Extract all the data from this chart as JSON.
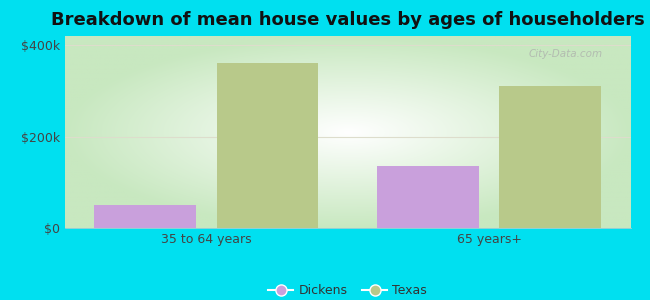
{
  "title": "Breakdown of mean house values by ages of householders",
  "categories": [
    "35 to 64 years",
    "65 years+"
  ],
  "dickens_values": [
    50000,
    135000
  ],
  "texas_values": [
    360000,
    310000
  ],
  "dickens_color": "#c9a0dc",
  "texas_color": "#b8c98a",
  "background_color": "#00e0f0",
  "plot_bg_gradient_center": "#ffffff",
  "plot_bg_gradient_edge": "#c8e8c0",
  "ylim": [
    0,
    420000
  ],
  "yticks": [
    0,
    200000,
    400000
  ],
  "ytick_labels": [
    "$0",
    "$200k",
    "$400k"
  ],
  "legend_labels": [
    "Dickens",
    "Texas"
  ],
  "title_fontsize": 13,
  "bar_width": 0.18,
  "watermark": "City-Data.com",
  "grid_color": "#ddddcc"
}
